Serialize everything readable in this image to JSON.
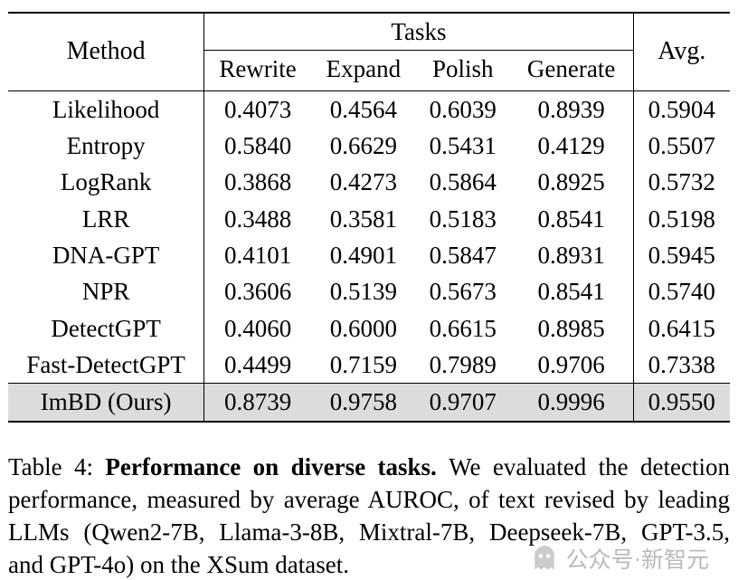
{
  "colors": {
    "highlight_row_bg": "#dcdcdc",
    "rule": "#000000",
    "watermark_gray": "#b4b4b4",
    "page_bg": "#ffffff"
  },
  "table": {
    "method_header": "Method",
    "group_header": "Tasks",
    "avg_header": "Avg.",
    "task_columns": [
      "Rewrite",
      "Expand",
      "Polish",
      "Generate"
    ],
    "rows": [
      {
        "method": "Likelihood",
        "values": [
          "0.4073",
          "0.4564",
          "0.6039",
          "0.8939"
        ],
        "avg": "0.5904",
        "highlight": false
      },
      {
        "method": "Entropy",
        "values": [
          "0.5840",
          "0.6629",
          "0.5431",
          "0.4129"
        ],
        "avg": "0.5507",
        "highlight": false
      },
      {
        "method": "LogRank",
        "values": [
          "0.3868",
          "0.4273",
          "0.5864",
          "0.8925"
        ],
        "avg": "0.5732",
        "highlight": false
      },
      {
        "method": "LRR",
        "values": [
          "0.3488",
          "0.3581",
          "0.5183",
          "0.8541"
        ],
        "avg": "0.5198",
        "highlight": false
      },
      {
        "method": "DNA-GPT",
        "values": [
          "0.4101",
          "0.4901",
          "0.5847",
          "0.8931"
        ],
        "avg": "0.5945",
        "highlight": false
      },
      {
        "method": "NPR",
        "values": [
          "0.3606",
          "0.5139",
          "0.5673",
          "0.8541"
        ],
        "avg": "0.5740",
        "highlight": false
      },
      {
        "method": "DetectGPT",
        "values": [
          "0.4060",
          "0.6000",
          "0.6615",
          "0.8985"
        ],
        "avg": "0.6415",
        "highlight": false
      },
      {
        "method": "Fast-DetectGPT",
        "values": [
          "0.4499",
          "0.7159",
          "0.7989",
          "0.9706"
        ],
        "avg": "0.7338",
        "highlight": false
      },
      {
        "method": "ImBD (Ours)",
        "values": [
          "0.8739",
          "0.9758",
          "0.9707",
          "0.9996"
        ],
        "avg": "0.9550",
        "highlight": true
      }
    ]
  },
  "caption": {
    "label": "Table 4: ",
    "title_bold": "Performance on diverse tasks. ",
    "body": "We evaluated the detection performance, measured by average AUROC, of text revised by leading LLMs (Qwen2-7B, Llama-3-8B, Mixtral-7B, Deepseek-7B, GPT-3.5, and GPT-4o) on the XSum dataset."
  },
  "watermark": {
    "icon": "ghost-icon",
    "text": "公众号·新智元"
  }
}
